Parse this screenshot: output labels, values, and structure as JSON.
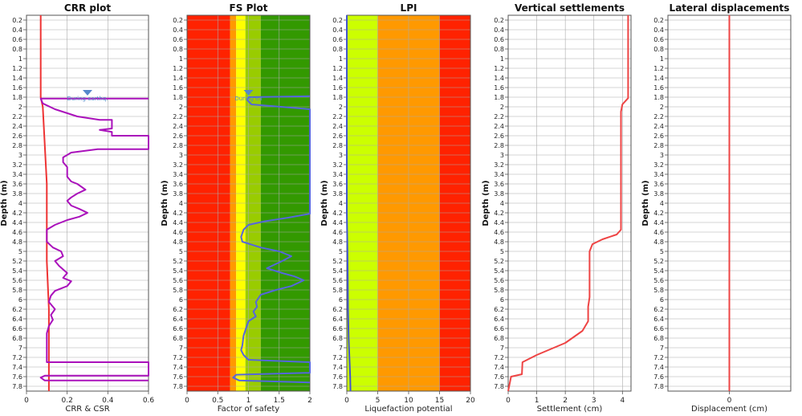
{
  "colors": {
    "csr": "#ee3333",
    "crr": "#aa11bb",
    "fs": "#5566dd",
    "lpi": "#4455cc",
    "settlement": "#ee4444",
    "displacement": "#ee4444",
    "water": "#5588cc",
    "zone_red": "#ff2200",
    "zone_orange": "#ff9900",
    "zone_yellow": "#ffff00",
    "zone_lightgreen": "#99cc00",
    "zone_green": "#339900",
    "zone_lime": "#ccff00"
  },
  "y_ticks": [
    "0.2",
    "0.4",
    "0.6",
    "0.8",
    "1",
    "1.2",
    "1.4",
    "1.6",
    "1.8",
    "2",
    "2.2",
    "2.4",
    "2.6",
    "2.8",
    "3",
    "3.2",
    "3.4",
    "3.6",
    "3.8",
    "4",
    "4.2",
    "4.4",
    "4.6",
    "4.8",
    "5",
    "5.2",
    "5.4",
    "5.6",
    "5.8",
    "6",
    "6.2",
    "6.4",
    "6.6",
    "6.8",
    "7",
    "7.2",
    "7.4",
    "7.6",
    "7.8"
  ],
  "chart_data": [
    {
      "type": "line",
      "title": "CRR plot",
      "xlabel": "CRR & CSR",
      "ylabel": "Depth (m)",
      "xlim": [
        0,
        0.6
      ],
      "ylim": [
        0.1,
        7.9
      ],
      "x_ticks": [
        "0",
        "0.2",
        "0.4",
        "0.6"
      ],
      "water_table": {
        "depth": 1.85,
        "x": 0.3,
        "label": "During earthq."
      },
      "series": [
        {
          "name": "CSR",
          "color_key": "csr",
          "points": [
            [
              0.07,
              0.1
            ],
            [
              0.07,
              1.8
            ],
            [
              0.08,
              2.0
            ],
            [
              0.09,
              2.8
            ],
            [
              0.1,
              3.6
            ],
            [
              0.1,
              4.4
            ],
            [
              0.1,
              5.2
            ],
            [
              0.11,
              6.2
            ],
            [
              0.11,
              7.0
            ],
            [
              0.11,
              7.9
            ]
          ]
        },
        {
          "name": "CRR",
          "color_key": "crr",
          "points": [
            [
              0.6,
              1.83
            ],
            [
              0.07,
              1.83
            ],
            [
              0.08,
              1.93
            ],
            [
              0.14,
              2.05
            ],
            [
              0.25,
              2.2
            ],
            [
              0.36,
              2.27
            ],
            [
              0.42,
              2.27
            ],
            [
              0.42,
              2.45
            ],
            [
              0.36,
              2.48
            ],
            [
              0.42,
              2.52
            ],
            [
              0.42,
              2.6
            ],
            [
              0.6,
              2.6
            ],
            [
              0.6,
              2.88
            ],
            [
              0.35,
              2.88
            ],
            [
              0.22,
              2.95
            ],
            [
              0.18,
              3.05
            ],
            [
              0.18,
              3.15
            ],
            [
              0.2,
              3.25
            ],
            [
              0.2,
              3.45
            ],
            [
              0.22,
              3.55
            ],
            [
              0.25,
              3.6
            ],
            [
              0.29,
              3.72
            ],
            [
              0.25,
              3.8
            ],
            [
              0.22,
              3.88
            ],
            [
              0.2,
              3.95
            ],
            [
              0.22,
              4.05
            ],
            [
              0.26,
              4.12
            ],
            [
              0.3,
              4.2
            ],
            [
              0.26,
              4.28
            ],
            [
              0.2,
              4.35
            ],
            [
              0.14,
              4.45
            ],
            [
              0.1,
              4.55
            ],
            [
              0.1,
              4.8
            ],
            [
              0.13,
              4.92
            ],
            [
              0.17,
              5.0
            ],
            [
              0.18,
              5.1
            ],
            [
              0.14,
              5.2
            ],
            [
              0.16,
              5.3
            ],
            [
              0.2,
              5.45
            ],
            [
              0.18,
              5.55
            ],
            [
              0.22,
              5.62
            ],
            [
              0.2,
              5.72
            ],
            [
              0.14,
              5.82
            ],
            [
              0.12,
              5.92
            ],
            [
              0.11,
              6.05
            ],
            [
              0.14,
              6.2
            ],
            [
              0.12,
              6.32
            ],
            [
              0.13,
              6.42
            ],
            [
              0.11,
              6.55
            ],
            [
              0.1,
              6.7
            ],
            [
              0.1,
              7.3
            ],
            [
              0.6,
              7.3
            ],
            [
              0.6,
              7.58
            ],
            [
              0.09,
              7.58
            ],
            [
              0.07,
              7.62
            ],
            [
              0.09,
              7.68
            ],
            [
              0.6,
              7.68
            ]
          ]
        }
      ]
    },
    {
      "type": "line",
      "title": "FS Plot",
      "xlabel": "Factor of safety",
      "ylabel": "Depth (m)",
      "xlim": [
        0,
        2
      ],
      "ylim": [
        0.1,
        7.9
      ],
      "x_ticks": [
        "0",
        "0.5",
        "1",
        "1.5",
        "2"
      ],
      "zones": [
        {
          "from": 0,
          "to": 0.7,
          "color_key": "zone_red"
        },
        {
          "from": 0.7,
          "to": 0.8,
          "color_key": "zone_orange"
        },
        {
          "from": 0.8,
          "to": 0.95,
          "color_key": "zone_yellow"
        },
        {
          "from": 0.95,
          "to": 1.2,
          "color_key": "zone_lightgreen"
        },
        {
          "from": 1.2,
          "to": 2.0,
          "color_key": "zone_green"
        }
      ],
      "water_table": {
        "depth": 1.85,
        "x": 1.0,
        "label": "During ea"
      },
      "series": [
        {
          "name": "FS",
          "color_key": "fs",
          "points": [
            [
              2,
              1.78
            ],
            [
              1.0,
              1.8
            ],
            [
              0.98,
              1.86
            ],
            [
              1.05,
              1.95
            ],
            [
              2,
              2.05
            ],
            [
              2,
              4.22
            ],
            [
              1.65,
              4.3
            ],
            [
              1.25,
              4.38
            ],
            [
              1.0,
              4.45
            ],
            [
              0.92,
              4.55
            ],
            [
              0.88,
              4.7
            ],
            [
              0.9,
              4.8
            ],
            [
              1.2,
              4.92
            ],
            [
              1.5,
              5.0
            ],
            [
              1.7,
              5.1
            ],
            [
              1.55,
              5.2
            ],
            [
              1.3,
              5.35
            ],
            [
              1.55,
              5.45
            ],
            [
              1.75,
              5.52
            ],
            [
              1.9,
              5.6
            ],
            [
              1.7,
              5.72
            ],
            [
              1.45,
              5.8
            ],
            [
              1.2,
              5.9
            ],
            [
              1.12,
              6.05
            ],
            [
              1.14,
              6.15
            ],
            [
              1.08,
              6.25
            ],
            [
              1.12,
              6.35
            ],
            [
              1.0,
              6.45
            ],
            [
              0.96,
              6.6
            ],
            [
              0.92,
              6.75
            ],
            [
              0.9,
              6.95
            ],
            [
              0.88,
              7.05
            ],
            [
              0.92,
              7.15
            ],
            [
              1.0,
              7.25
            ],
            [
              2,
              7.3
            ],
            [
              2,
              7.52
            ],
            [
              0.8,
              7.56
            ],
            [
              0.75,
              7.62
            ],
            [
              0.85,
              7.68
            ],
            [
              2,
              7.72
            ]
          ]
        }
      ]
    },
    {
      "type": "line",
      "title": "LPI",
      "xlabel": "Liquefaction potential",
      "ylabel": "Depth (m)",
      "xlim": [
        0,
        20
      ],
      "ylim": [
        0.1,
        7.9
      ],
      "x_ticks": [
        "0",
        "5",
        "10",
        "15",
        "20"
      ],
      "zones": [
        {
          "from": 0,
          "to": 5,
          "color_key": "zone_lime"
        },
        {
          "from": 5,
          "to": 15,
          "color_key": "zone_orange"
        },
        {
          "from": 15,
          "to": 20,
          "color_key": "zone_red"
        }
      ],
      "series": [
        {
          "name": "LPI",
          "color_key": "lpi",
          "points": [
            [
              0,
              0.1
            ],
            [
              0,
              4.2
            ],
            [
              0.05,
              4.6
            ],
            [
              0.1,
              5.0
            ],
            [
              0.15,
              5.6
            ],
            [
              0.2,
              6.2
            ],
            [
              0.3,
              6.8
            ],
            [
              0.45,
              7.3
            ],
            [
              0.55,
              7.6
            ],
            [
              0.6,
              7.9
            ]
          ]
        }
      ]
    },
    {
      "type": "line",
      "title": "Vertical settlements",
      "xlabel": "Settlement (cm)",
      "ylabel": "Depth (m)",
      "xlim": [
        0,
        4.3
      ],
      "ylim": [
        0.1,
        7.9
      ],
      "x_ticks": [
        "0",
        "1",
        "2",
        "3",
        "4"
      ],
      "series": [
        {
          "name": "Settlement",
          "color_key": "settlement",
          "points": [
            [
              4.2,
              0.1
            ],
            [
              4.2,
              1.82
            ],
            [
              4.0,
              1.95
            ],
            [
              3.95,
              2.1
            ],
            [
              3.95,
              4.55
            ],
            [
              3.8,
              4.65
            ],
            [
              3.3,
              4.75
            ],
            [
              2.95,
              4.85
            ],
            [
              2.85,
              5.0
            ],
            [
              2.85,
              5.95
            ],
            [
              2.8,
              6.15
            ],
            [
              2.8,
              6.45
            ],
            [
              2.6,
              6.65
            ],
            [
              2.0,
              6.9
            ],
            [
              1.0,
              7.15
            ],
            [
              0.5,
              7.3
            ],
            [
              0.48,
              7.55
            ],
            [
              0.1,
              7.6
            ],
            [
              0.0,
              7.9
            ]
          ]
        }
      ]
    },
    {
      "type": "line",
      "title": "Lateral displacements",
      "xlabel": "Displacement (cm)",
      "ylabel": "Depth (m)",
      "xlim": [
        -1,
        1
      ],
      "ylim": [
        0.1,
        7.9
      ],
      "x_ticks": [
        "0"
      ],
      "series": [
        {
          "name": "Displacement",
          "color_key": "displacement",
          "points": [
            [
              0,
              0.1
            ],
            [
              0,
              7.9
            ]
          ]
        }
      ]
    }
  ]
}
